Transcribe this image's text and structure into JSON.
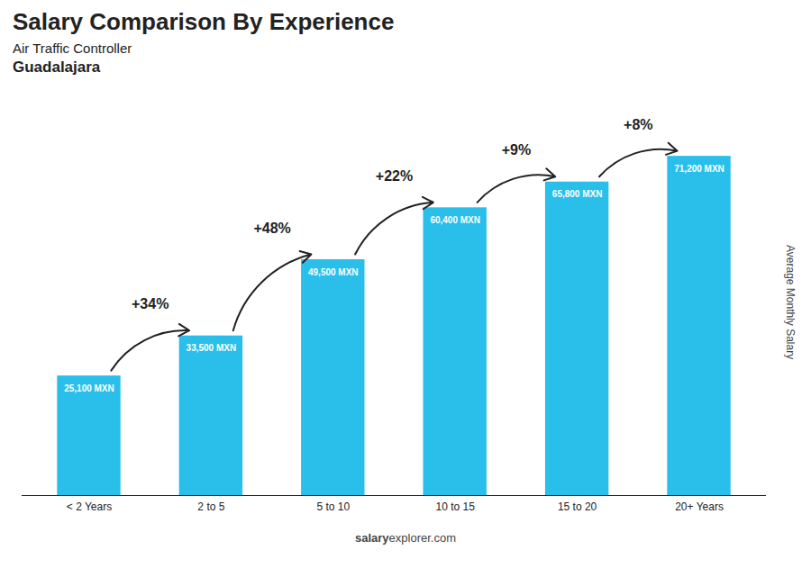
{
  "chart_data": {
    "type": "bar",
    "title": "Salary Comparison By Experience",
    "subtitle": [
      "Air Traffic Controller",
      "Guadalajara"
    ],
    "ylabel": "Average Monthly Salary",
    "categories": [
      "< 2 Years",
      "2 to 5",
      "5 to 10",
      "10 to 15",
      "15 to 20",
      "20+ Years"
    ],
    "values": [
      25100,
      33500,
      49500,
      60400,
      65800,
      71200
    ],
    "value_labels": [
      "25,100 MXN",
      "33,500 MXN",
      "49,500 MXN",
      "60,400 MXN",
      "65,800 MXN",
      "71,200 MXN"
    ],
    "data_labels": true,
    "color": "#29BFEA",
    "ylim": [
      0,
      82000
    ],
    "tick_labels": "x",
    "grid": false,
    "annotations": [
      {
        "from": "< 2 Years",
        "to": "2 to 5",
        "text": "+34%"
      },
      {
        "from": "2 to 5",
        "to": "5 to 10",
        "text": "+48%"
      },
      {
        "from": "5 to 10",
        "to": "10 to 15",
        "text": "+22%"
      },
      {
        "from": "10 to 15",
        "to": "15 to 20",
        "text": "+9%"
      },
      {
        "from": "15 to 20",
        "to": "20+ Years",
        "text": "+8%"
      }
    ],
    "caption": [
      "salary",
      "explorer.com"
    ]
  }
}
